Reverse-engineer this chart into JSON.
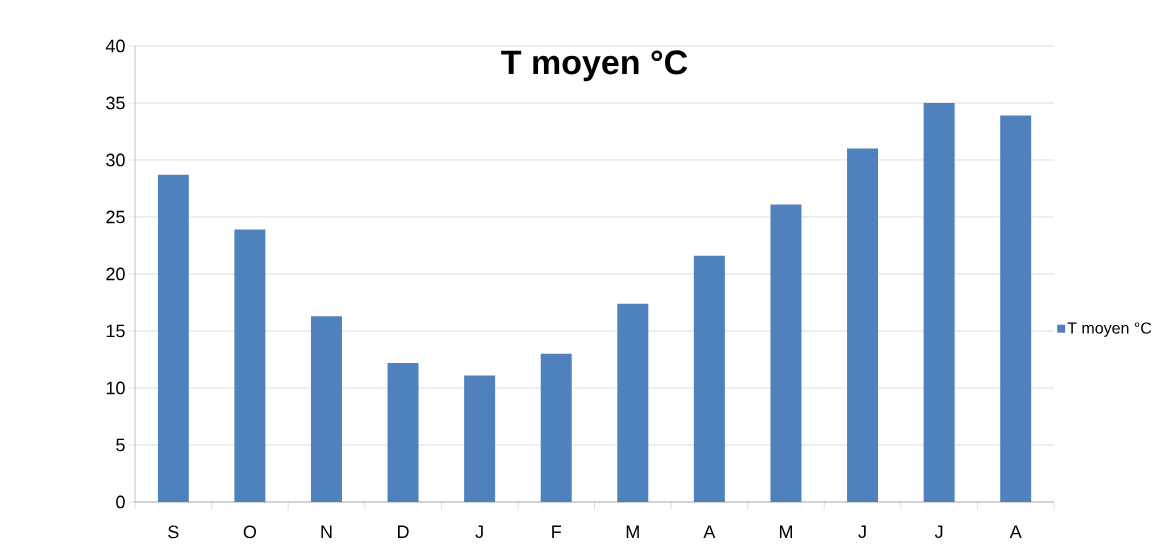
{
  "chart_data": {
    "type": "bar",
    "title": "T moyen °C",
    "categories": [
      "S",
      "O",
      "N",
      "D",
      "J",
      "F",
      "M",
      "A",
      "M",
      "J",
      "J",
      "A"
    ],
    "series": [
      {
        "name": "T moyen °C",
        "color": "#4f81bd",
        "values": [
          28.7,
          23.9,
          16.3,
          12.2,
          11.1,
          13.0,
          17.4,
          21.6,
          26.1,
          31.0,
          35.0,
          33.9
        ]
      }
    ],
    "ylim": [
      0,
      40
    ],
    "yticks": [
      0,
      5,
      10,
      15,
      20,
      25,
      30,
      35,
      40
    ],
    "grid": "y",
    "legend": "right"
  }
}
